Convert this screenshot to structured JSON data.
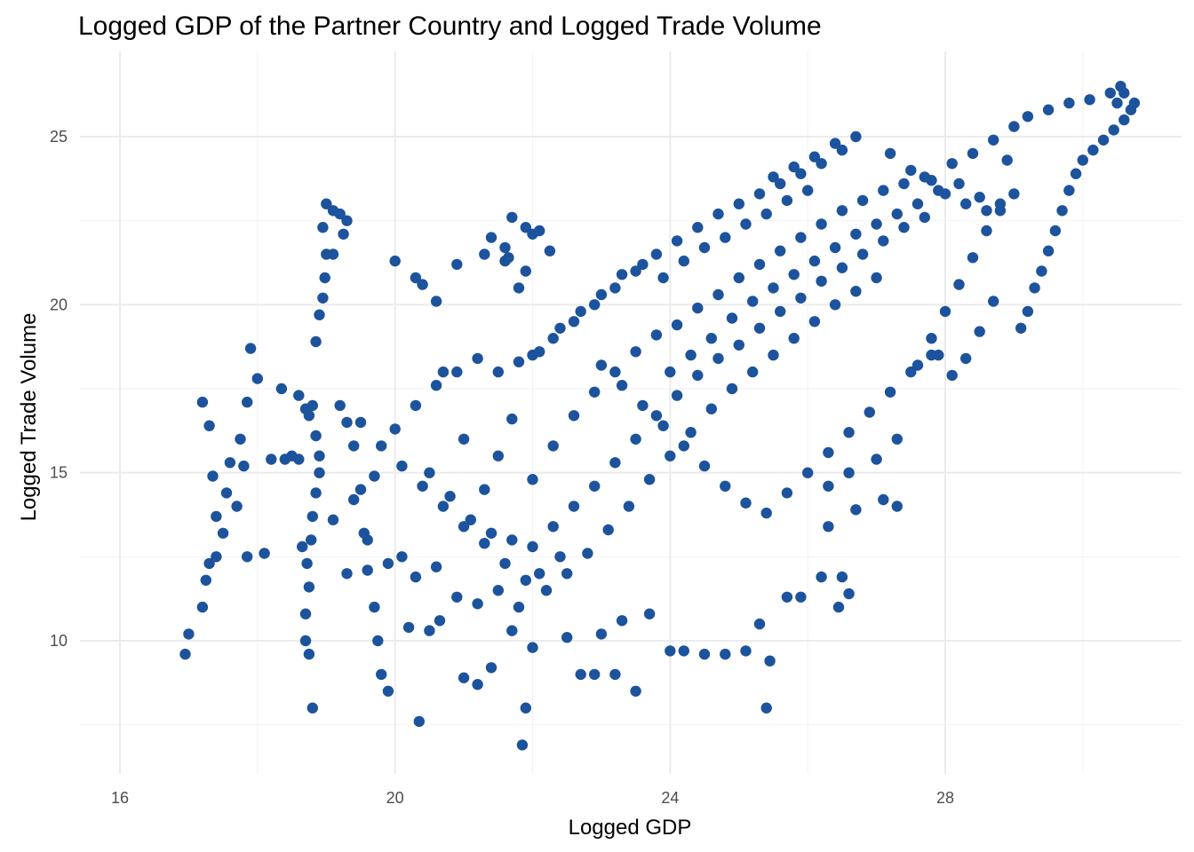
{
  "chart_data": {
    "type": "scatter",
    "title": "Logged GDP of the Partner Country and Logged Trade Volume",
    "xlabel": "Logged GDP",
    "ylabel": "Logged Trade Volume",
    "xlim": [
      15.9,
      31.0
    ],
    "ylim": [
      6.5,
      26.9
    ],
    "x_ticks": [
      16,
      20,
      24,
      28
    ],
    "y_ticks": [
      10,
      15,
      20,
      25
    ],
    "x_tick_labels": [
      "16",
      "20",
      "24",
      "28"
    ],
    "y_tick_labels": [
      "10",
      "15",
      "20",
      "25"
    ],
    "grid": true,
    "legend": "none",
    "point_color": "#1c539c",
    "points": [
      [
        16.95,
        9.6
      ],
      [
        17.0,
        10.2
      ],
      [
        17.2,
        11.0
      ],
      [
        17.25,
        11.8
      ],
      [
        17.3,
        12.3
      ],
      [
        17.4,
        12.5
      ],
      [
        17.2,
        17.1
      ],
      [
        17.3,
        16.4
      ],
      [
        17.35,
        14.9
      ],
      [
        17.4,
        13.7
      ],
      [
        17.5,
        13.2
      ],
      [
        17.55,
        14.4
      ],
      [
        17.6,
        15.3
      ],
      [
        17.7,
        14.0
      ],
      [
        17.75,
        16.0
      ],
      [
        17.8,
        15.2
      ],
      [
        17.85,
        17.1
      ],
      [
        17.9,
        18.7
      ],
      [
        18.0,
        17.8
      ],
      [
        17.85,
        12.5
      ],
      [
        18.1,
        12.6
      ],
      [
        18.2,
        15.4
      ],
      [
        18.4,
        15.4
      ],
      [
        18.35,
        17.5
      ],
      [
        18.6,
        17.3
      ],
      [
        18.5,
        15.5
      ],
      [
        18.7,
        16.9
      ],
      [
        18.65,
        12.8
      ],
      [
        18.6,
        15.4
      ],
      [
        18.75,
        16.7
      ],
      [
        18.8,
        8.0
      ],
      [
        18.75,
        9.6
      ],
      [
        18.7,
        10.0
      ],
      [
        18.7,
        10.8
      ],
      [
        18.75,
        11.6
      ],
      [
        18.72,
        12.3
      ],
      [
        18.78,
        13.0
      ],
      [
        18.8,
        13.7
      ],
      [
        18.85,
        14.4
      ],
      [
        18.9,
        15.0
      ],
      [
        18.9,
        15.5
      ],
      [
        18.85,
        16.1
      ],
      [
        18.8,
        17.0
      ],
      [
        18.85,
        18.9
      ],
      [
        18.9,
        19.7
      ],
      [
        18.95,
        20.2
      ],
      [
        18.98,
        20.8
      ],
      [
        19.0,
        21.5
      ],
      [
        18.95,
        22.3
      ],
      [
        19.0,
        23.0
      ],
      [
        19.1,
        22.8
      ],
      [
        19.2,
        22.7
      ],
      [
        19.25,
        22.1
      ],
      [
        19.3,
        22.5
      ],
      [
        19.1,
        21.5
      ],
      [
        19.2,
        17.0
      ],
      [
        19.3,
        16.5
      ],
      [
        19.4,
        15.8
      ],
      [
        19.5,
        14.5
      ],
      [
        19.55,
        13.2
      ],
      [
        19.6,
        12.1
      ],
      [
        19.7,
        11.0
      ],
      [
        19.75,
        10.0
      ],
      [
        19.8,
        9.0
      ],
      [
        19.9,
        8.5
      ],
      [
        20.35,
        7.6
      ],
      [
        20.3,
        20.8
      ],
      [
        20.4,
        20.6
      ],
      [
        20.0,
        21.3
      ],
      [
        20.6,
        20.1
      ],
      [
        20.7,
        18.0
      ],
      [
        20.65,
        10.6
      ],
      [
        20.5,
        10.3
      ],
      [
        20.2,
        10.4
      ],
      [
        21.0,
        8.9
      ],
      [
        21.2,
        8.7
      ],
      [
        21.4,
        9.2
      ],
      [
        21.7,
        10.3
      ],
      [
        21.85,
        6.9
      ],
      [
        21.9,
        8.0
      ],
      [
        22.0,
        9.8
      ],
      [
        22.5,
        10.1
      ],
      [
        22.7,
        9.0
      ],
      [
        22.9,
        9.0
      ],
      [
        23.0,
        10.2
      ],
      [
        23.2,
        9.0
      ],
      [
        23.5,
        8.5
      ],
      [
        23.3,
        10.6
      ],
      [
        23.7,
        10.8
      ],
      [
        24.0,
        9.7
      ],
      [
        24.2,
        9.7
      ],
      [
        24.5,
        9.6
      ],
      [
        24.8,
        9.6
      ],
      [
        25.1,
        9.7
      ],
      [
        25.3,
        10.5
      ],
      [
        25.45,
        9.4
      ],
      [
        25.4,
        8.0
      ],
      [
        25.7,
        11.3
      ],
      [
        25.9,
        11.3
      ],
      [
        26.2,
        11.9
      ],
      [
        26.5,
        11.9
      ],
      [
        26.45,
        11.0
      ],
      [
        26.6,
        11.4
      ],
      [
        26.3,
        13.4
      ],
      [
        26.7,
        13.9
      ],
      [
        27.3,
        14.0
      ],
      [
        27.1,
        14.2
      ],
      [
        20.9,
        21.2
      ],
      [
        21.3,
        21.5
      ],
      [
        21.6,
        21.3
      ],
      [
        21.8,
        20.5
      ],
      [
        21.4,
        22.0
      ],
      [
        21.6,
        21.7
      ],
      [
        22.0,
        22.1
      ],
      [
        22.1,
        22.2
      ],
      [
        21.7,
        22.6
      ],
      [
        21.9,
        22.3
      ],
      [
        21.65,
        21.4
      ],
      [
        22.25,
        21.6
      ],
      [
        21.9,
        21.0
      ],
      [
        21.0,
        16.0
      ],
      [
        21.3,
        14.5
      ],
      [
        21.5,
        15.5
      ],
      [
        21.7,
        16.6
      ],
      [
        22.0,
        14.8
      ],
      [
        22.3,
        15.8
      ],
      [
        22.6,
        16.7
      ],
      [
        22.9,
        17.4
      ],
      [
        23.2,
        18.0
      ],
      [
        23.5,
        18.6
      ],
      [
        23.8,
        19.1
      ],
      [
        24.1,
        19.4
      ],
      [
        24.4,
        19.9
      ],
      [
        24.7,
        20.3
      ],
      [
        25.0,
        20.8
      ],
      [
        25.3,
        21.2
      ],
      [
        25.6,
        21.6
      ],
      [
        25.9,
        22.0
      ],
      [
        26.2,
        22.4
      ],
      [
        26.5,
        22.8
      ],
      [
        26.8,
        23.1
      ],
      [
        27.1,
        23.4
      ],
      [
        27.4,
        23.6
      ],
      [
        27.7,
        23.8
      ],
      [
        28.0,
        23.3
      ],
      [
        28.3,
        23.0
      ],
      [
        28.6,
        22.8
      ],
      [
        20.5,
        15.0
      ],
      [
        20.8,
        14.3
      ],
      [
        21.1,
        13.6
      ],
      [
        21.4,
        13.2
      ],
      [
        21.7,
        13.0
      ],
      [
        22.0,
        12.8
      ],
      [
        22.3,
        13.4
      ],
      [
        22.6,
        14.0
      ],
      [
        22.9,
        14.6
      ],
      [
        23.2,
        15.3
      ],
      [
        23.5,
        16.0
      ],
      [
        23.8,
        16.7
      ],
      [
        24.1,
        17.3
      ],
      [
        24.4,
        17.9
      ],
      [
        24.7,
        18.4
      ],
      [
        25.0,
        18.8
      ],
      [
        25.3,
        19.3
      ],
      [
        25.6,
        19.8
      ],
      [
        25.9,
        20.2
      ],
      [
        26.2,
        20.7
      ],
      [
        26.5,
        21.1
      ],
      [
        26.8,
        21.5
      ],
      [
        27.1,
        21.9
      ],
      [
        27.4,
        22.3
      ],
      [
        27.7,
        22.6
      ],
      [
        19.5,
        16.5
      ],
      [
        19.8,
        15.8
      ],
      [
        20.1,
        15.2
      ],
      [
        20.4,
        14.6
      ],
      [
        20.7,
        14.0
      ],
      [
        21.0,
        13.4
      ],
      [
        21.3,
        12.9
      ],
      [
        21.6,
        12.3
      ],
      [
        21.9,
        11.8
      ],
      [
        22.2,
        11.5
      ],
      [
        22.5,
        12.0
      ],
      [
        22.8,
        12.6
      ],
      [
        23.1,
        13.3
      ],
      [
        23.4,
        14.0
      ],
      [
        23.7,
        14.8
      ],
      [
        24.0,
        15.5
      ],
      [
        24.3,
        16.2
      ],
      [
        24.6,
        16.9
      ],
      [
        24.9,
        17.5
      ],
      [
        25.2,
        18.0
      ],
      [
        25.5,
        18.5
      ],
      [
        25.8,
        19.0
      ],
      [
        26.1,
        19.5
      ],
      [
        26.4,
        20.0
      ],
      [
        26.7,
        20.4
      ],
      [
        27.0,
        20.8
      ],
      [
        22.0,
        18.5
      ],
      [
        22.3,
        19.0
      ],
      [
        22.6,
        19.5
      ],
      [
        22.9,
        20.0
      ],
      [
        23.2,
        20.5
      ],
      [
        23.5,
        21.0
      ],
      [
        23.8,
        21.5
      ],
      [
        24.1,
        21.9
      ],
      [
        24.4,
        22.3
      ],
      [
        24.7,
        22.7
      ],
      [
        25.0,
        23.0
      ],
      [
        25.3,
        23.3
      ],
      [
        25.6,
        23.6
      ],
      [
        25.9,
        23.9
      ],
      [
        26.2,
        24.2
      ],
      [
        26.5,
        24.6
      ],
      [
        26.7,
        25.0
      ],
      [
        26.4,
        24.8
      ],
      [
        26.1,
        24.4
      ],
      [
        25.8,
        24.1
      ],
      [
        25.5,
        23.8
      ],
      [
        23.0,
        18.2
      ],
      [
        23.3,
        17.6
      ],
      [
        23.6,
        17.0
      ],
      [
        23.9,
        16.4
      ],
      [
        24.2,
        15.8
      ],
      [
        24.5,
        15.2
      ],
      [
        24.8,
        14.6
      ],
      [
        25.1,
        14.1
      ],
      [
        25.4,
        13.8
      ],
      [
        25.7,
        14.4
      ],
      [
        26.0,
        15.0
      ],
      [
        26.3,
        15.6
      ],
      [
        26.6,
        16.2
      ],
      [
        26.9,
        16.8
      ],
      [
        27.2,
        17.4
      ],
      [
        27.5,
        18.0
      ],
      [
        27.8,
        18.5
      ],
      [
        27.2,
        24.5
      ],
      [
        27.5,
        24.0
      ],
      [
        27.8,
        23.7
      ],
      [
        28.1,
        24.2
      ],
      [
        28.4,
        24.5
      ],
      [
        28.7,
        24.9
      ],
      [
        29.0,
        25.3
      ],
      [
        29.2,
        25.6
      ],
      [
        29.5,
        25.8
      ],
      [
        29.8,
        26.0
      ],
      [
        30.1,
        26.1
      ],
      [
        30.4,
        26.3
      ],
      [
        30.55,
        26.5
      ],
      [
        30.6,
        26.3
      ],
      [
        30.5,
        26.0
      ],
      [
        29.1,
        19.3
      ],
      [
        29.2,
        19.8
      ],
      [
        29.3,
        20.5
      ],
      [
        29.4,
        21.0
      ],
      [
        29.5,
        21.6
      ],
      [
        29.6,
        22.2
      ],
      [
        29.7,
        22.8
      ],
      [
        29.8,
        23.4
      ],
      [
        29.9,
        23.9
      ],
      [
        30.0,
        24.3
      ],
      [
        30.15,
        24.6
      ],
      [
        30.3,
        24.9
      ],
      [
        30.45,
        25.2
      ],
      [
        30.6,
        25.5
      ],
      [
        30.7,
        25.8
      ],
      [
        30.75,
        26.0
      ],
      [
        27.6,
        18.2
      ],
      [
        27.8,
        19.0
      ],
      [
        28.0,
        19.8
      ],
      [
        28.2,
        20.6
      ],
      [
        28.4,
        21.4
      ],
      [
        28.6,
        22.2
      ],
      [
        28.8,
        22.8
      ],
      [
        29.0,
        23.3
      ],
      [
        28.9,
        24.3
      ],
      [
        27.9,
        18.5
      ],
      [
        28.1,
        17.9
      ],
      [
        28.3,
        18.4
      ],
      [
        28.5,
        19.2
      ],
      [
        28.7,
        20.1
      ],
      [
        27.3,
        16.0
      ],
      [
        27.0,
        15.4
      ],
      [
        26.6,
        15.0
      ],
      [
        26.3,
        14.6
      ],
      [
        20.1,
        12.5
      ],
      [
        20.3,
        11.9
      ],
      [
        20.6,
        12.2
      ],
      [
        20.9,
        11.3
      ],
      [
        21.2,
        11.1
      ],
      [
        21.5,
        11.5
      ],
      [
        21.8,
        11.0
      ],
      [
        22.1,
        12.0
      ],
      [
        22.4,
        12.5
      ],
      [
        19.6,
        13.0
      ],
      [
        19.9,
        12.3
      ],
      [
        19.3,
        12.0
      ],
      [
        19.1,
        13.6
      ],
      [
        19.4,
        14.2
      ],
      [
        19.7,
        14.9
      ],
      [
        20.0,
        16.3
      ],
      [
        20.3,
        17.0
      ],
      [
        20.6,
        17.6
      ],
      [
        20.9,
        18.0
      ],
      [
        21.2,
        18.4
      ],
      [
        21.5,
        18.0
      ],
      [
        21.8,
        18.3
      ],
      [
        22.1,
        18.6
      ],
      [
        22.4,
        19.3
      ],
      [
        22.7,
        19.8
      ],
      [
        23.0,
        20.3
      ],
      [
        23.3,
        20.9
      ],
      [
        23.6,
        21.2
      ],
      [
        23.9,
        20.8
      ],
      [
        24.2,
        21.3
      ],
      [
        24.5,
        21.7
      ],
      [
        24.8,
        22.0
      ],
      [
        25.1,
        22.4
      ],
      [
        25.4,
        22.7
      ],
      [
        25.7,
        23.1
      ],
      [
        26.0,
        23.4
      ],
      [
        24.0,
        18.0
      ],
      [
        24.3,
        18.5
      ],
      [
        24.6,
        19.0
      ],
      [
        24.9,
        19.6
      ],
      [
        25.2,
        20.1
      ],
      [
        25.5,
        20.5
      ],
      [
        25.8,
        20.9
      ],
      [
        26.1,
        21.3
      ],
      [
        26.4,
        21.7
      ],
      [
        26.7,
        22.1
      ],
      [
        27.0,
        22.4
      ],
      [
        27.3,
        22.7
      ],
      [
        27.6,
        23.0
      ],
      [
        27.9,
        23.4
      ],
      [
        28.2,
        23.6
      ],
      [
        28.5,
        23.2
      ],
      [
        28.8,
        23.0
      ]
    ]
  }
}
